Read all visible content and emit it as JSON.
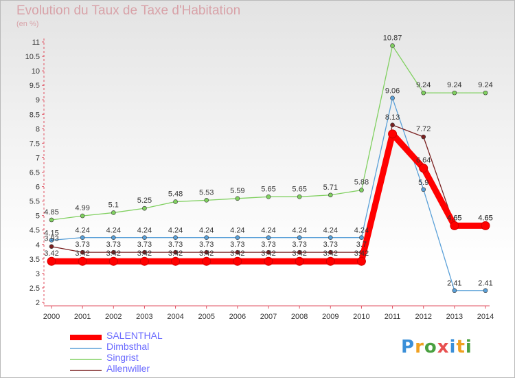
{
  "header": {
    "title": "Evolution du Taux de Taxe d'Habitation",
    "subtitle": "(en %)"
  },
  "logo": {
    "text": "Proxiti"
  },
  "chart_data": {
    "type": "line",
    "x": [
      "2000",
      "2001",
      "2002",
      "2003",
      "2004",
      "2005",
      "2006",
      "2007",
      "2008",
      "2009",
      "2010",
      "2011",
      "2012",
      "2013",
      "2014"
    ],
    "yticks": [
      "2",
      "2.5",
      "3",
      "3.5",
      "4",
      "4.5",
      "5",
      "5.5",
      "6",
      "6.5",
      "7",
      "7.5",
      "8",
      "8.5",
      "9",
      "9.5",
      "10",
      "10.5",
      "11"
    ],
    "ylim": [
      2,
      11
    ],
    "grid": false,
    "legend_position": "bottom-left",
    "series": [
      {
        "name": "SALENTHAL",
        "color": "#ff0000",
        "values": [
          3.42,
          3.42,
          3.42,
          3.42,
          3.42,
          3.42,
          3.42,
          3.42,
          3.42,
          3.42,
          3.42,
          7.82,
          6.64,
          4.65,
          4.65
        ],
        "labels": [
          "3.42",
          "3.42",
          "3.42",
          "3.42",
          "3.42",
          "3.42",
          "3.42",
          "3.42",
          "3.42",
          "3.42",
          "3.42",
          "",
          "6.64",
          "4.65",
          "4.65"
        ]
      },
      {
        "name": "Dimbsthal",
        "color": "#5aa0d8",
        "values": [
          4.15,
          4.24,
          4.24,
          4.24,
          4.24,
          4.24,
          4.24,
          4.24,
          4.24,
          4.24,
          4.24,
          9.06,
          5.9,
          2.41,
          2.41
        ],
        "labels": [
          "4.15",
          "4.24",
          "4.24",
          "4.24",
          "4.24",
          "4.24",
          "4.24",
          "4.24",
          "4.24",
          "4.24",
          "4.24",
          "9.06",
          "5.9",
          "2.41",
          "2.41"
        ]
      },
      {
        "name": "Singrist",
        "color": "#80d060",
        "values": [
          4.85,
          4.99,
          5.1,
          5.25,
          5.48,
          5.53,
          5.59,
          5.65,
          5.65,
          5.71,
          5.88,
          10.87,
          9.24,
          9.24,
          9.24
        ],
        "labels": [
          "4.85",
          "4.99",
          "5.1",
          "5.25",
          "5.48",
          "5.53",
          "5.59",
          "5.65",
          "5.65",
          "5.71",
          "5.88",
          "10.87",
          "9.24",
          "9.24",
          "9.24"
        ]
      },
      {
        "name": "Allenwiller",
        "color": "#7a2020",
        "values": [
          3.93,
          3.73,
          3.73,
          3.73,
          3.73,
          3.73,
          3.73,
          3.73,
          3.73,
          3.73,
          3.73,
          8.13,
          7.72,
          4.65,
          4.65
        ],
        "labels": [
          "3.93",
          "3.73",
          "3.73",
          "3.73",
          "3.73",
          "3.73",
          "3.73",
          "3.73",
          "3.73",
          "3.73",
          "3.7",
          "8.13",
          "7.72",
          "4.65",
          "4.65"
        ]
      }
    ]
  }
}
